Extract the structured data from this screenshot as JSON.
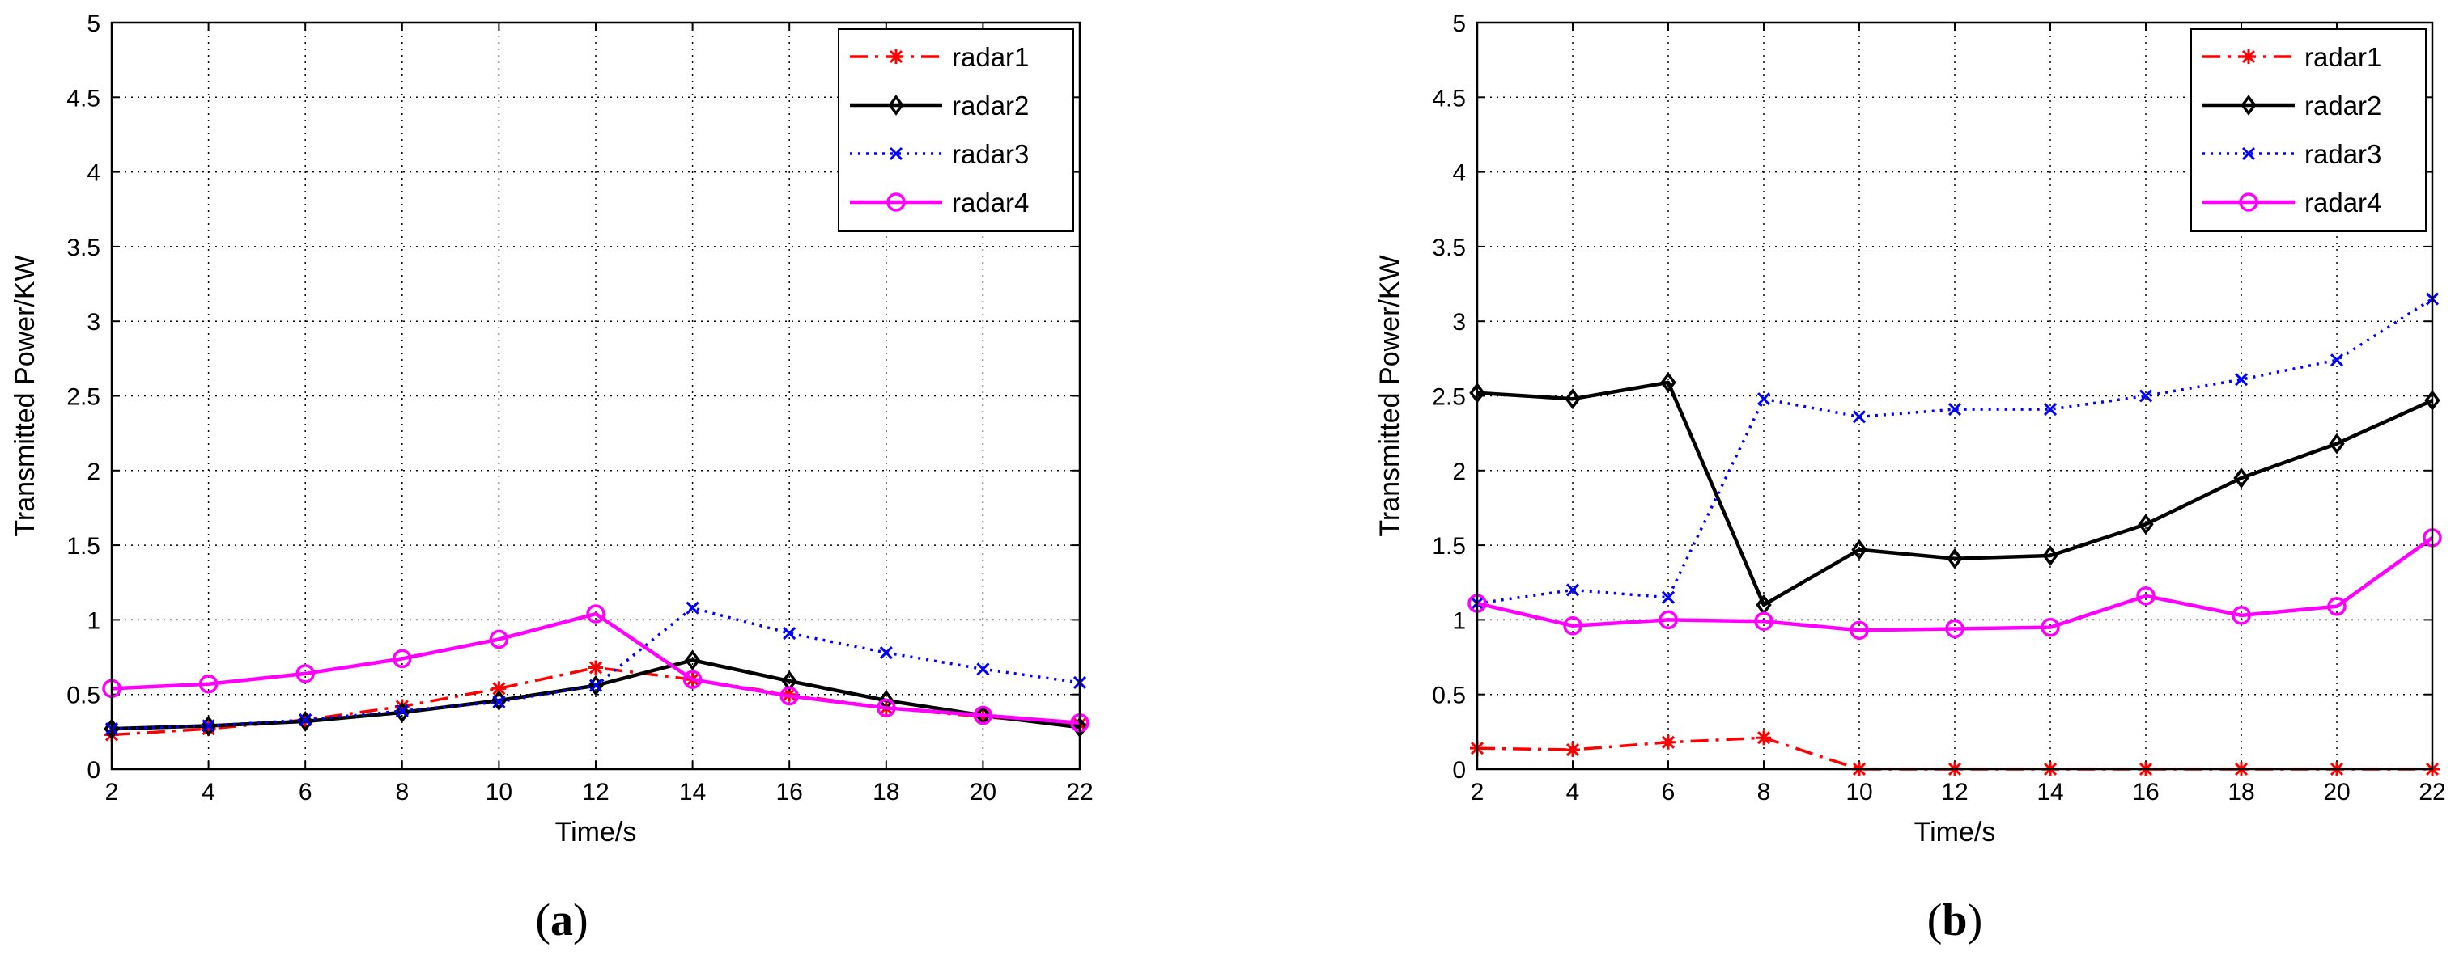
{
  "chart_data": [
    {
      "type": "line",
      "panel_label": "a",
      "xlabel": "Time/s",
      "ylabel": "Transmitted Power/KW",
      "xlim": [
        2,
        22
      ],
      "ylim": [
        0,
        5
      ],
      "xticks": [
        2,
        4,
        6,
        8,
        10,
        12,
        14,
        16,
        18,
        20,
        22
      ],
      "yticks": [
        0,
        0.5,
        1,
        1.5,
        2,
        2.5,
        3,
        3.5,
        4,
        4.5,
        5
      ],
      "ytick_labels": [
        "0",
        "0.5",
        "1",
        "1.5",
        "2",
        "2.5",
        "3",
        "3.5",
        "4",
        "4.5",
        "5"
      ],
      "grid": true,
      "legend_position": "top-right",
      "x": [
        2,
        4,
        6,
        8,
        10,
        12,
        14,
        16,
        18,
        20,
        22
      ],
      "series": [
        {
          "name": "radar1",
          "color": "#ff0000",
          "dash": "dashdot",
          "marker": "star",
          "values": [
            0.23,
            0.27,
            0.33,
            0.42,
            0.54,
            0.68,
            0.6,
            0.5,
            0.41,
            0.35,
            0.3
          ]
        },
        {
          "name": "radar2",
          "color": "#000000",
          "dash": "solid",
          "marker": "diamond",
          "values": [
            0.27,
            0.29,
            0.32,
            0.38,
            0.46,
            0.56,
            0.73,
            0.59,
            0.46,
            0.36,
            0.28
          ]
        },
        {
          "name": "radar3",
          "color": "#0000ff",
          "dash": "dotted",
          "marker": "x",
          "values": [
            0.27,
            0.29,
            0.33,
            0.39,
            0.45,
            0.56,
            1.08,
            0.91,
            0.78,
            0.67,
            0.58
          ]
        },
        {
          "name": "radar4",
          "color": "#ff00ff",
          "dash": "solid",
          "marker": "circle",
          "values": [
            0.54,
            0.57,
            0.64,
            0.74,
            0.87,
            1.04,
            0.6,
            0.49,
            0.41,
            0.36,
            0.31
          ]
        }
      ]
    },
    {
      "type": "line",
      "panel_label": "b",
      "xlabel": "Time/s",
      "ylabel": "Transmitted Power/KW",
      "xlim": [
        2,
        22
      ],
      "ylim": [
        0,
        5
      ],
      "xticks": [
        2,
        4,
        6,
        8,
        10,
        12,
        14,
        16,
        18,
        20,
        22
      ],
      "yticks": [
        0,
        0.5,
        1,
        1.5,
        2,
        2.5,
        3,
        3.5,
        4,
        4.5,
        5
      ],
      "ytick_labels": [
        "0",
        "0.5",
        "1",
        "1.5",
        "2",
        "2.5",
        "3",
        "3.5",
        "4",
        "4.5",
        "5"
      ],
      "grid": true,
      "legend_position": "top-right",
      "x": [
        2,
        4,
        6,
        8,
        10,
        12,
        14,
        16,
        18,
        20,
        22
      ],
      "series": [
        {
          "name": "radar1",
          "color": "#ff0000",
          "dash": "dashdot",
          "marker": "star",
          "values": [
            0.14,
            0.13,
            0.18,
            0.21,
            0.0,
            0.0,
            0.0,
            0.0,
            0.0,
            0.0,
            0.0
          ]
        },
        {
          "name": "radar2",
          "color": "#000000",
          "dash": "solid",
          "marker": "diamond",
          "values": [
            2.52,
            2.48,
            2.59,
            1.1,
            1.47,
            1.41,
            1.43,
            1.64,
            1.95,
            2.18,
            2.47
          ]
        },
        {
          "name": "radar3",
          "color": "#0000ff",
          "dash": "dotted",
          "marker": "x",
          "values": [
            1.11,
            1.2,
            1.15,
            2.48,
            2.36,
            2.41,
            2.41,
            2.5,
            2.61,
            2.74,
            3.15
          ]
        },
        {
          "name": "radar4",
          "color": "#ff00ff",
          "dash": "solid",
          "marker": "circle",
          "values": [
            1.11,
            0.96,
            1.0,
            0.99,
            0.93,
            0.94,
            0.95,
            1.16,
            1.03,
            1.09,
            1.55
          ]
        }
      ]
    }
  ]
}
